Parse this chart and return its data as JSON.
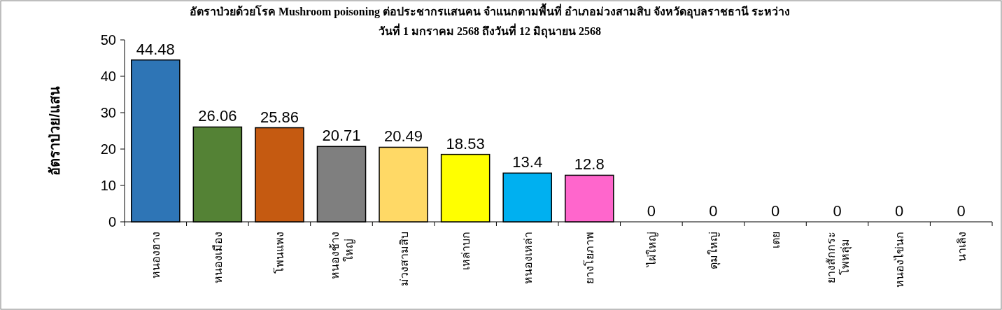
{
  "chart_data": {
    "type": "bar",
    "title": "อัตราป่วยด้วยโรค Mushroom poisoning ต่อประชากรแสนคน จำแนกตามพื้นที่ อำเภอม่วงสามสิบ จังหวัดอุบลราชธานี        ระหว่าง\nวันที่ 1 มกราคม 2568 ถึงวันที่ 12 มิถุนายน 2568",
    "ylabel": "อัตราป่วย/แสน",
    "categories": [
      "หนองฮาง",
      "หนองเมือง",
      "โพนแพง",
      "หนองช้าง\nใหญ่",
      "ม่วงสามสิบ",
      "เหล่าบก",
      "หนองเหล่า",
      "ยางโยภาพ",
      "ไผ่ใหญ่",
      "ดุมใหญ่",
      "เตย",
      "ยางสักกระ\nโพหลุ่ม",
      "หนองไข่นก",
      "นาเลิง"
    ],
    "values": [
      44.48,
      26.06,
      25.86,
      20.71,
      20.49,
      18.53,
      13.4,
      12.8,
      0,
      0,
      0,
      0,
      0,
      0
    ],
    "colors": [
      "#2e75b6",
      "#548235",
      "#c55a11",
      "#7f7f7f",
      "#ffd966",
      "#ffff00",
      "#00b0f0",
      "#ff66cc",
      "#4472c4",
      "#4472c4",
      "#4472c4",
      "#4472c4",
      "#4472c4",
      "#4472c4"
    ],
    "ylim": [
      0,
      50
    ],
    "yticks": [
      0,
      10,
      20,
      30,
      40,
      50
    ],
    "data_labels": true
  }
}
